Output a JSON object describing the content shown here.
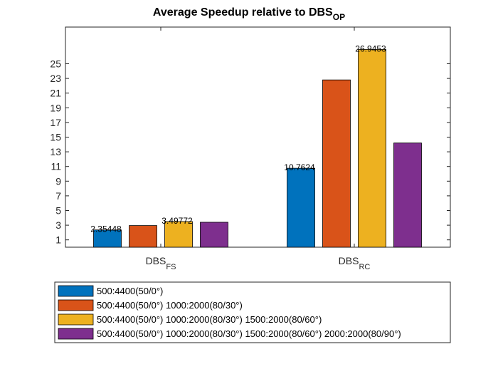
{
  "chart_data": {
    "type": "bar",
    "title": "Average Speedup relative to DBS",
    "title_subscript": "OP",
    "categories": [
      {
        "main": "DBS",
        "sub": "FS"
      },
      {
        "main": "DBS",
        "sub": "RC"
      }
    ],
    "series": [
      {
        "name": "500:4400(50/0°)",
        "color": "#0072BD",
        "values": [
          2.35448,
          10.7624
        ]
      },
      {
        "name": "500:4400(50/0°) 1000:2000(80/30°)",
        "color": "#D95319",
        "values": [
          2.95,
          22.8
        ]
      },
      {
        "name": "500:4400(50/0°) 1000:2000(80/30°) 1500:2000(80/60°)",
        "color": "#EDB120",
        "values": [
          3.49772,
          26.9453
        ]
      },
      {
        "name": "500:4400(50/0°) 1000:2000(80/30°) 1500:2000(80/60°) 2000:2000(80/90°)",
        "color": "#7E2F8E",
        "values": [
          3.4,
          14.2
        ]
      }
    ],
    "data_labels": [
      {
        "series": 0,
        "category": 0,
        "text": "2.35448"
      },
      {
        "series": 2,
        "category": 0,
        "text": "3.49772"
      },
      {
        "series": 0,
        "category": 1,
        "text": "10.7624"
      },
      {
        "series": 2,
        "category": 1,
        "text": "26.9453"
      }
    ],
    "y_ticks": [
      1,
      3,
      5,
      7,
      9,
      11,
      13,
      15,
      17,
      19,
      21,
      23,
      25
    ],
    "ylim": [
      0,
      30
    ],
    "grid": false,
    "legend_position": "bottom"
  }
}
